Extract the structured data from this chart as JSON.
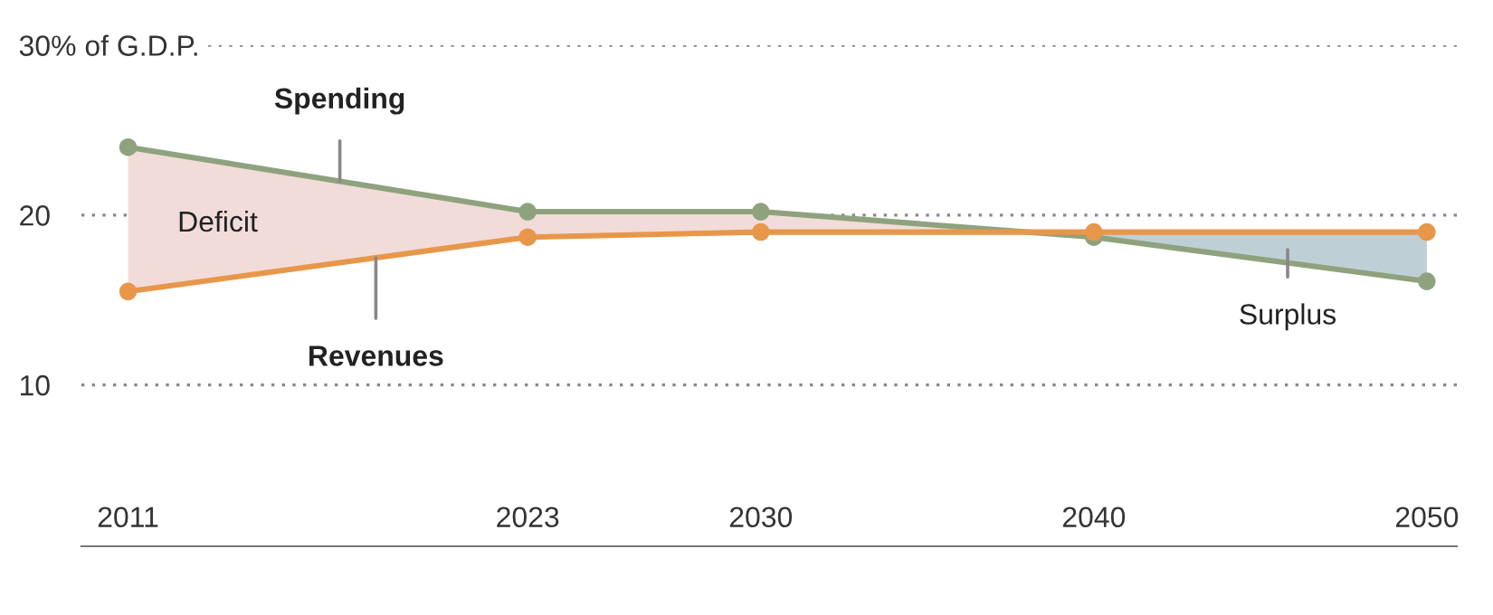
{
  "chart_data": {
    "type": "line",
    "x": [
      2011,
      2023,
      2030,
      2040,
      2050
    ],
    "series": [
      {
        "name": "Spending",
        "color": "#8fa27e",
        "values": [
          24.0,
          20.2,
          20.2,
          18.7,
          16.1
        ]
      },
      {
        "name": "Revenues",
        "color": "#e8974a",
        "values": [
          15.5,
          18.7,
          19.0,
          19.0,
          19.0
        ]
      }
    ],
    "xlim": [
      2009.6,
      2050.9
    ],
    "xticks": [
      2011,
      2023,
      2030,
      2040,
      2050
    ],
    "ylim": [
      0.5,
      30
    ],
    "yticks": [
      {
        "value": 10,
        "label": "10"
      },
      {
        "value": 20,
        "label": "20"
      },
      {
        "value": 30,
        "label": "30% of G.D.P."
      }
    ],
    "grid": "y",
    "marker": "circle",
    "line_style": "solid",
    "legend": false,
    "annotations": [
      "Deficit",
      "Surplus"
    ]
  }
}
